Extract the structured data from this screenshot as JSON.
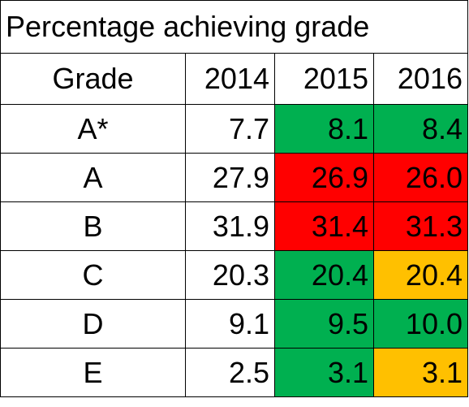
{
  "title": "Percentage achieving grade",
  "columns": [
    "Grade",
    "2014",
    "2015",
    "2016"
  ],
  "colors": {
    "green": "#00b050",
    "red": "#ff0000",
    "amber": "#ffc000",
    "none": "#ffffff"
  },
  "rows": [
    {
      "grade": "A*",
      "y2014": "7.7",
      "y2015": "8.1",
      "y2016": "8.4",
      "status2015": "green",
      "status2016": "green"
    },
    {
      "grade": "A",
      "y2014": "27.9",
      "y2015": "26.9",
      "y2016": "26.0",
      "status2015": "red",
      "status2016": "red"
    },
    {
      "grade": "B",
      "y2014": "31.9",
      "y2015": "31.4",
      "y2016": "31.3",
      "status2015": "red",
      "status2016": "red"
    },
    {
      "grade": "C",
      "y2014": "20.3",
      "y2015": "20.4",
      "y2016": "20.4",
      "status2015": "green",
      "status2016": "amber"
    },
    {
      "grade": "D",
      "y2014": "9.1",
      "y2015": "9.5",
      "y2016": "10.0",
      "status2015": "green",
      "status2016": "green"
    },
    {
      "grade": "E",
      "y2014": "2.5",
      "y2015": "3.1",
      "y2016": "3.1",
      "status2015": "green",
      "status2016": "amber"
    }
  ]
}
